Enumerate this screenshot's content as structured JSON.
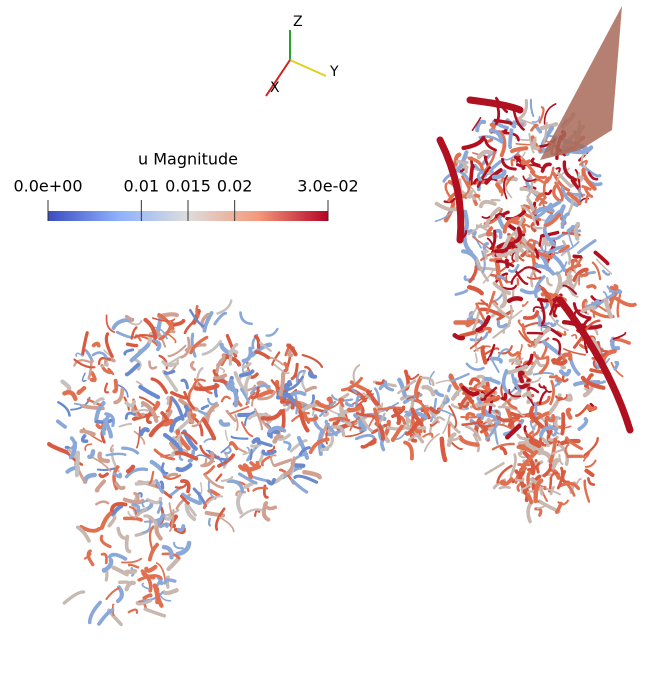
{
  "colorbar": {
    "title": "u Magnitude",
    "range": [
      0,
      0.03
    ],
    "ticks": [
      {
        "value": 0,
        "label": "0.0e+00"
      },
      0.01,
      0.015,
      0.02,
      {
        "value": 0.03,
        "label": "3.0e-02"
      }
    ]
  },
  "axes_triad": {
    "z": "Z",
    "y": "Y",
    "x": "X"
  }
}
